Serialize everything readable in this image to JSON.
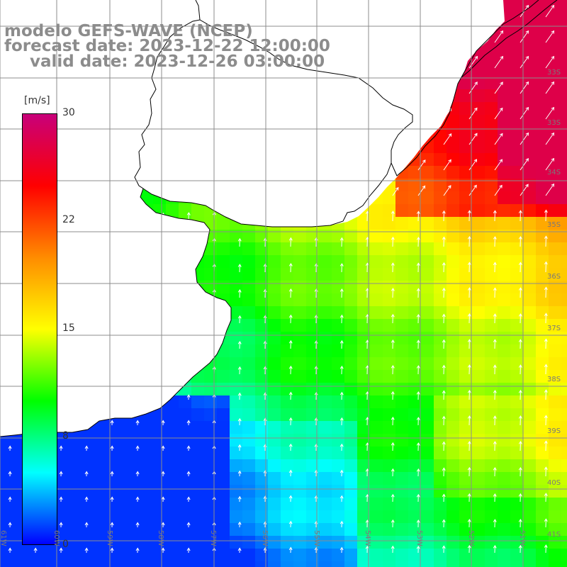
{
  "title": {
    "line1": "modelo GEFS-WAVE (NCEP)",
    "line2": "forecast date: 2023-12-22 12:00:00",
    "line3": "valid date: 2023-12-26 03:00:00"
  },
  "colorbar": {
    "unit": "[m/s]",
    "ticks": [
      "30",
      "22",
      "15",
      "8",
      "0"
    ],
    "range": [
      0,
      30
    ],
    "stops": [
      "#0000ff",
      "#00ffff",
      "#00ff00",
      "#ffff00",
      "#ff8c00",
      "#ff0000",
      "#c8007a"
    ]
  },
  "lat_labels": [
    "33S",
    "33S",
    "34S",
    "35S",
    "36S",
    "37S",
    "38S",
    "39S",
    "40S",
    "41S"
  ],
  "lon_labels": [
    "61W",
    "60W",
    "59W",
    "58W",
    "57W",
    "56W",
    "55W",
    "54W",
    "53W",
    "52W",
    "51W"
  ],
  "colors": {
    "land": "#ffffff",
    "coast": "#000000",
    "grid": "#8c8c8c",
    "title": "#8c8c8c",
    "arrow": "#ffffff"
  },
  "chart_data": {
    "type": "heatmap",
    "field": "wind speed",
    "units": "m/s",
    "vmin": 0,
    "vmax": 30,
    "grid": true,
    "arrows": "wind direction vectors"
  }
}
